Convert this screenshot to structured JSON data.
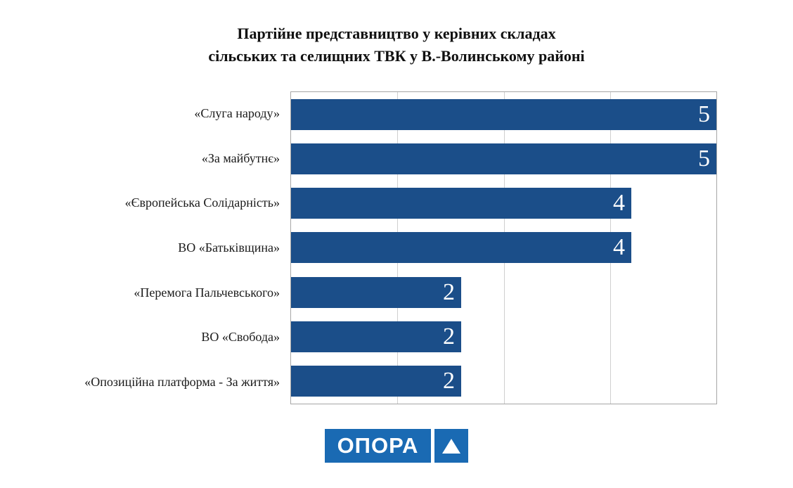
{
  "title": {
    "line1": "Партійне представництво у керівних складах",
    "line2": "сільських та селищних ТВК у В.-Волинському районі"
  },
  "chart_data": {
    "type": "bar",
    "orientation": "horizontal",
    "title": "Партійне представництво у керівних складах сільських та селищних ТВК у В.-Волинському районі",
    "categories": [
      "«Слуга народу»",
      "«За майбутнє»",
      "«Європейська Солідарність»",
      "ВО «Батьківщина»",
      "«Перемога Пальчевського»",
      "ВО «Свобода»",
      "«Опозиційна платформа - За життя»"
    ],
    "values": [
      5,
      5,
      4,
      4,
      2,
      2,
      2
    ],
    "xlim": [
      0,
      5
    ],
    "gridlines": [
      1.25,
      2.5,
      3.75
    ],
    "grid": "vertical",
    "legend_position": "none",
    "bar_color": "#1b4e89",
    "value_label_color": "#ffffff"
  },
  "logo": {
    "text": "ОПОРА",
    "icon": "triangle-up-icon",
    "background_color": "#1a6ab3",
    "text_color": "#ffffff"
  }
}
